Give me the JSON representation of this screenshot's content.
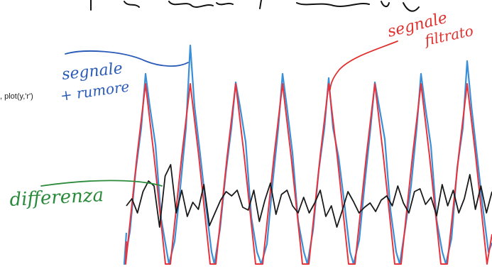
{
  "code_snippet": ", plot(y,'r')",
  "annotations": {
    "blue": {
      "lines": [
        "segnale",
        "+ rumore"
      ],
      "color": "#2a5bb8"
    },
    "red": {
      "lines": [
        "segnale",
        "filtrato"
      ],
      "color": "#e0302e"
    },
    "green": {
      "text": "differenza",
      "color": "#2a8a3a"
    }
  },
  "colors": {
    "noisy_signal": "#3a8fd6",
    "filtered_signal": "#e8333d",
    "difference": "#1a1a1a",
    "top_scribble": "#111111"
  }
}
